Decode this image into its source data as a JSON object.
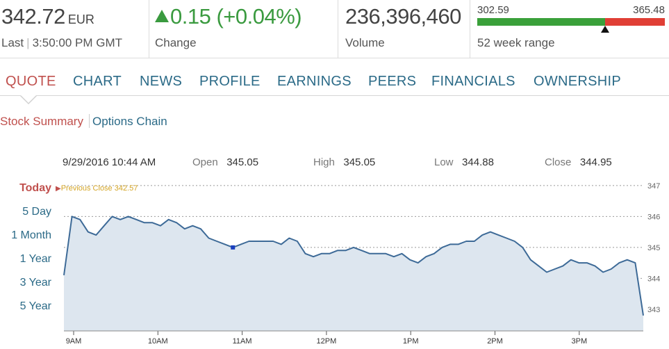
{
  "header": {
    "last": {
      "value": "342.72",
      "currency": "EUR",
      "label": "Last",
      "time": "3:50:00 PM GMT"
    },
    "change": {
      "value": "0.15 (+0.04%)",
      "label": "Change",
      "direction_color": "#3a9a3f"
    },
    "volume": {
      "value": "236,396,460",
      "label": "Volume"
    },
    "week52": {
      "low": "302.59",
      "high": "365.48",
      "label": "52 week range",
      "position": 0.68
    }
  },
  "tabs": [
    {
      "label": "QUOTE",
      "active": true
    },
    {
      "label": "CHART",
      "active": false
    },
    {
      "label": "NEWS",
      "active": false
    },
    {
      "label": "PROFILE",
      "active": false
    },
    {
      "label": "EARNINGS",
      "active": false
    },
    {
      "label": "PEERS",
      "active": false
    },
    {
      "label": "FINANCIALS",
      "active": false
    },
    {
      "label": "OWNERSHIP",
      "active": false
    }
  ],
  "subtabs": [
    {
      "label": "Stock Summary",
      "active": true
    },
    {
      "label": "Options Chain",
      "active": false
    }
  ],
  "info": {
    "datetime": "9/29/2016 10:44 AM",
    "open_label": "Open",
    "open": "345.05",
    "high_label": "High",
    "high": "345.05",
    "low_label": "Low",
    "low": "344.88",
    "close_label": "Close",
    "close": "344.95"
  },
  "range_links": [
    "Today",
    "5 Day",
    "1 Month",
    "1 Year",
    "3 Year",
    "5 Year"
  ],
  "previous_close": {
    "label": "Previous Close 342.57",
    "value": 342.57
  },
  "chart_data": {
    "type": "line",
    "title": "",
    "xlabel": "",
    "ylabel": "",
    "x_ticks": [
      "9AM",
      "10AM",
      "11AM",
      "12PM",
      "1PM",
      "2PM",
      "3PM"
    ],
    "y_ticks": [
      343,
      344,
      345,
      346,
      347
    ],
    "ylim": [
      342.3,
      347.2
    ],
    "grid": true,
    "series": [
      {
        "values": [
          344.1,
          346.0,
          345.9,
          345.5,
          345.4,
          345.7,
          346.0,
          345.9,
          346.0,
          345.9,
          345.8,
          345.8,
          345.7,
          345.9,
          345.8,
          345.6,
          345.7,
          345.6,
          345.3,
          345.2,
          345.1,
          345.0,
          345.1,
          345.2,
          345.2,
          345.2,
          345.2,
          345.1,
          345.3,
          345.2,
          344.8,
          344.7,
          344.8,
          344.8,
          344.9,
          344.9,
          345.0,
          344.9,
          344.8,
          344.8,
          344.8,
          344.7,
          344.8,
          344.6,
          344.5,
          344.7,
          344.8,
          345.0,
          345.1,
          345.1,
          345.2,
          345.2,
          345.4,
          345.5,
          345.4,
          345.3,
          345.2,
          345.0,
          344.6,
          344.4,
          344.2,
          344.3,
          344.4,
          344.6,
          344.5,
          344.5,
          344.4,
          344.2,
          344.3,
          344.5,
          344.6,
          344.5,
          342.8
        ],
        "color": "#3d6a97"
      }
    ],
    "marker_index": 21,
    "marker_color": "#1a3fbf"
  }
}
